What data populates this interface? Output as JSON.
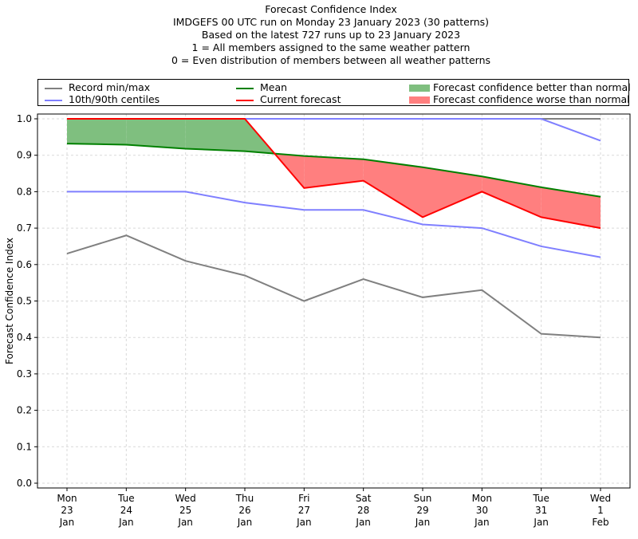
{
  "colors": {
    "record": "#808080",
    "centiles": "#7f7fff",
    "mean": "#008000",
    "current": "#ff0000",
    "better_fill": "#7fbf7f",
    "worse_fill": "#ff7f7f",
    "grid": "#d9d9d9",
    "max_centile_overlap": "#3333cc"
  },
  "chart_data": {
    "type": "line",
    "title": "Forecast Confidence Index",
    "subtitles": [
      "IMDGEFS 00 UTC run on Monday 23 January 2023 (30 patterns)",
      "Based on the latest 727 runs up to 23 January 2023",
      "1 = All members assigned to the same weather pattern",
      "0 = Even distribution of members between all weather patterns"
    ],
    "xlabel": "",
    "ylabel": "Forecast Confidence Index",
    "ylim": [
      0.0,
      1.0
    ],
    "yticks": [
      "0.0",
      "0.1",
      "0.2",
      "0.3",
      "0.4",
      "0.5",
      "0.6",
      "0.7",
      "0.8",
      "0.9",
      "1.0"
    ],
    "grid": true,
    "legend_position": "top (above plot, 3 columns)",
    "categories": [
      [
        "Mon",
        "23",
        "Jan"
      ],
      [
        "Tue",
        "24",
        "Jan"
      ],
      [
        "Wed",
        "25",
        "Jan"
      ],
      [
        "Thu",
        "26",
        "Jan"
      ],
      [
        "Fri",
        "27",
        "Jan"
      ],
      [
        "Sat",
        "28",
        "Jan"
      ],
      [
        "Sun",
        "29",
        "Jan"
      ],
      [
        "Mon",
        "30",
        "Jan"
      ],
      [
        "Tue",
        "31",
        "Jan"
      ],
      [
        "Wed",
        "1",
        "Feb"
      ]
    ],
    "series": [
      {
        "name": "Record max",
        "legend": "Record min/max",
        "color_key": "record",
        "values": [
          1.0,
          1.0,
          1.0,
          1.0,
          1.0,
          1.0,
          1.0,
          1.0,
          1.0,
          1.0
        ]
      },
      {
        "name": "Record min",
        "legend": "Record min/max",
        "color_key": "record",
        "values": [
          0.63,
          0.68,
          0.61,
          0.57,
          0.5,
          0.56,
          0.51,
          0.53,
          0.41,
          0.4
        ]
      },
      {
        "name": "90th centile",
        "legend": "10th/90th centiles",
        "color_key": "centiles",
        "values": [
          1.0,
          1.0,
          1.0,
          1.0,
          1.0,
          1.0,
          1.0,
          1.0,
          1.0,
          0.94
        ]
      },
      {
        "name": "10th centile",
        "legend": "10th/90th centiles",
        "color_key": "centiles",
        "values": [
          0.8,
          0.8,
          0.8,
          0.77,
          0.75,
          0.75,
          0.71,
          0.7,
          0.65,
          0.62
        ]
      },
      {
        "name": "Mean",
        "legend": "Mean",
        "color_key": "mean",
        "values": [
          0.932,
          0.929,
          0.918,
          0.911,
          0.898,
          0.889,
          0.867,
          0.842,
          0.812,
          0.786
        ]
      },
      {
        "name": "Current forecast",
        "legend": "Current forecast",
        "color_key": "current",
        "values": [
          1.0,
          1.0,
          1.0,
          1.0,
          0.81,
          0.83,
          0.73,
          0.8,
          0.73,
          0.7
        ]
      }
    ],
    "fills": [
      {
        "name": "Forecast confidence better than normal",
        "color_key": "better_fill",
        "between": [
          "Current forecast",
          "Mean"
        ],
        "where": "current > mean"
      },
      {
        "name": "Forecast confidence worse than normal",
        "color_key": "worse_fill",
        "between": [
          "Current forecast",
          "Mean"
        ],
        "where": "current < mean"
      }
    ]
  },
  "legend": {
    "items": [
      {
        "label": "Record min/max",
        "kind": "line",
        "color_key": "record"
      },
      {
        "label": "10th/90th centiles",
        "kind": "line",
        "color_key": "centiles"
      },
      {
        "label": "Mean",
        "kind": "line",
        "color_key": "mean"
      },
      {
        "label": "Current forecast",
        "kind": "line",
        "color_key": "current"
      },
      {
        "label": "Forecast confidence better than normal",
        "kind": "patch",
        "color_key": "better_fill"
      },
      {
        "label": "Forecast confidence worse than normal",
        "kind": "patch",
        "color_key": "worse_fill"
      }
    ]
  }
}
